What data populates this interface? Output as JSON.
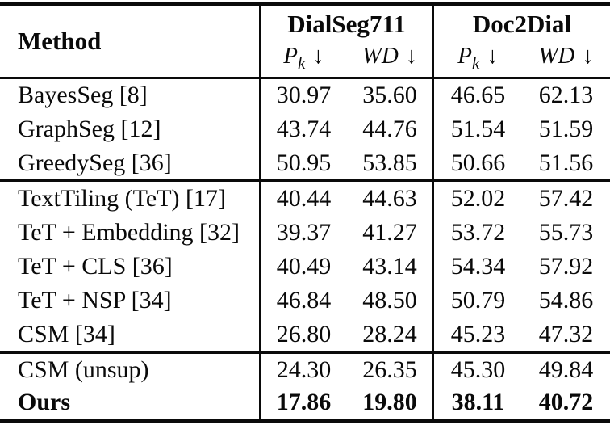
{
  "colors": {
    "text": "#0a0a0a",
    "background": "#ffffff",
    "rule": "#0a0a0a"
  },
  "table": {
    "method_header": "Method",
    "groups": [
      {
        "label": "DialSeg711"
      },
      {
        "label": "Doc2Dial"
      }
    ],
    "metrics": [
      {
        "name": "P",
        "subscript": "k",
        "arrow": "↓"
      },
      {
        "name": "WD",
        "subscript": "",
        "arrow": "↓"
      },
      {
        "name": "P",
        "subscript": "k",
        "arrow": "↓"
      },
      {
        "name": "WD",
        "subscript": "",
        "arrow": "↓"
      }
    ],
    "row_groups": [
      {
        "rows": [
          {
            "method": "BayesSeg [8]",
            "values": [
              "30.97",
              "35.60",
              "46.65",
              "62.13"
            ],
            "bold": false
          },
          {
            "method": "GraphSeg [12]",
            "values": [
              "43.74",
              "44.76",
              "51.54",
              "51.59"
            ],
            "bold": false
          },
          {
            "method": "GreedySeg [36]",
            "values": [
              "50.95",
              "53.85",
              "50.66",
              "51.56"
            ],
            "bold": false
          }
        ]
      },
      {
        "rows": [
          {
            "method": "TextTiling (TeT) [17]",
            "values": [
              "40.44",
              "44.63",
              "52.02",
              "57.42"
            ],
            "bold": false
          },
          {
            "method": "TeT + Embedding [32]",
            "values": [
              "39.37",
              "41.27",
              "53.72",
              "55.73"
            ],
            "bold": false
          },
          {
            "method": "TeT + CLS [36]",
            "values": [
              "40.49",
              "43.14",
              "54.34",
              "57.92"
            ],
            "bold": false
          },
          {
            "method": "TeT + NSP [34]",
            "values": [
              "46.84",
              "48.50",
              "50.79",
              "54.86"
            ],
            "bold": false
          },
          {
            "method": "CSM [34]",
            "values": [
              "26.80",
              "28.24",
              "45.23",
              "47.32"
            ],
            "bold": false
          }
        ]
      },
      {
        "rows": [
          {
            "method": "CSM (unsup)",
            "values": [
              "24.30",
              "26.35",
              "45.30",
              "49.84"
            ],
            "bold": false
          },
          {
            "method": "Ours",
            "values": [
              "17.86",
              "19.80",
              "38.11",
              "40.72"
            ],
            "bold": true
          }
        ]
      }
    ]
  }
}
